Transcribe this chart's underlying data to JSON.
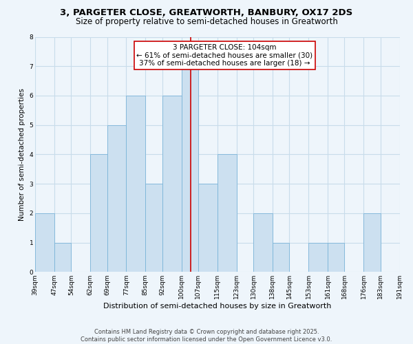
{
  "title": "3, PARGETER CLOSE, GREATWORTH, BANBURY, OX17 2DS",
  "subtitle": "Size of property relative to semi-detached houses in Greatworth",
  "xlabel": "Distribution of semi-detached houses by size in Greatworth",
  "ylabel": "Number of semi-detached properties",
  "bins": [
    39,
    47,
    54,
    62,
    69,
    77,
    85,
    92,
    100,
    107,
    115,
    123,
    130,
    138,
    145,
    153,
    161,
    168,
    176,
    183,
    191
  ],
  "counts": [
    2,
    1,
    0,
    4,
    5,
    6,
    3,
    6,
    7,
    3,
    4,
    0,
    2,
    1,
    0,
    1,
    1,
    0,
    2,
    0
  ],
  "bar_color": "#cce0f0",
  "bar_edge_color": "#7ab4d8",
  "property_line_x": 104,
  "property_line_color": "#cc0000",
  "annotation_line1": "3 PARGETER CLOSE: 104sqm",
  "annotation_line2": "← 61% of semi-detached houses are smaller (30)",
  "annotation_line3": "37% of semi-detached houses are larger (18) →",
  "annotation_box_color": "#ffffff",
  "annotation_box_edge_color": "#cc0000",
  "tick_labels": [
    "39sqm",
    "47sqm",
    "54sqm",
    "62sqm",
    "69sqm",
    "77sqm",
    "85sqm",
    "92sqm",
    "100sqm",
    "107sqm",
    "115sqm",
    "123sqm",
    "130sqm",
    "138sqm",
    "145sqm",
    "153sqm",
    "161sqm",
    "168sqm",
    "176sqm",
    "183sqm",
    "191sqm"
  ],
  "ylim": [
    0,
    8
  ],
  "yticks": [
    0,
    1,
    2,
    3,
    4,
    5,
    6,
    7,
    8
  ],
  "grid_color": "#c8dcea",
  "background_color": "#eef5fb",
  "footer_text": "Contains HM Land Registry data © Crown copyright and database right 2025.\nContains public sector information licensed under the Open Government Licence v3.0.",
  "title_fontsize": 9.5,
  "subtitle_fontsize": 8.5,
  "xlabel_fontsize": 8,
  "ylabel_fontsize": 7.5,
  "tick_fontsize": 6.5,
  "annotation_fontsize": 7.5,
  "footer_fontsize": 6.0
}
